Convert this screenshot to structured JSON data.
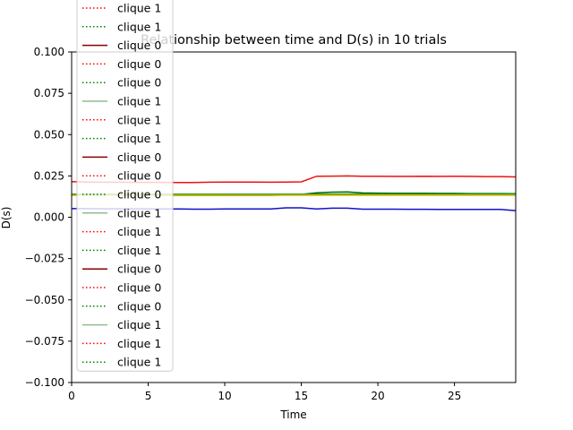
{
  "chart_data": {
    "type": "line",
    "title": "Relationship between time and D(s) in 10 trials",
    "xlabel": "Time",
    "ylabel": "D(s)",
    "xlim": [
      0,
      29
    ],
    "ylim": [
      -0.1,
      0.1
    ],
    "x_ticks": [
      0,
      5,
      10,
      15,
      20,
      25
    ],
    "x_tick_labels": [
      "0",
      "5",
      "10",
      "15",
      "20",
      "25"
    ],
    "y_ticks": [
      -0.1,
      -0.075,
      -0.05,
      -0.025,
      0.0,
      0.025,
      0.05,
      0.075,
      0.1
    ],
    "y_tick_labels": [
      "−0.100",
      "−0.075",
      "−0.050",
      "−0.025",
      "0.000",
      "0.025",
      "0.050",
      "0.075",
      "0.100"
    ],
    "grid": false,
    "legend_position": "upper-left",
    "x": [
      0,
      1,
      2,
      3,
      4,
      5,
      6,
      7,
      8,
      9,
      10,
      11,
      12,
      13,
      14,
      15,
      16,
      17,
      18,
      19,
      20,
      21,
      22,
      23,
      24,
      25,
      26,
      27,
      28,
      29
    ],
    "series": [
      {
        "color": "#ee1111",
        "values": [
          0.0215,
          0.0213,
          0.0212,
          0.0212,
          0.0211,
          0.0211,
          0.0211,
          0.021,
          0.021,
          0.0212,
          0.0213,
          0.0213,
          0.0213,
          0.0212,
          0.0213,
          0.0214,
          0.0248,
          0.0249,
          0.025,
          0.0248,
          0.0248,
          0.0247,
          0.0247,
          0.0248,
          0.0247,
          0.0248,
          0.0247,
          0.0246,
          0.0246,
          0.0244
        ]
      },
      {
        "color": "#006400",
        "values": [
          0.0135,
          0.0135,
          0.0134,
          0.0134,
          0.0133,
          0.0133,
          0.0132,
          0.0132,
          0.0132,
          0.0132,
          0.0132,
          0.0132,
          0.0132,
          0.0132,
          0.0135,
          0.0138,
          0.0148,
          0.0152,
          0.0153,
          0.0147,
          0.0146,
          0.0145,
          0.0145,
          0.0145,
          0.0144,
          0.0144,
          0.0143,
          0.0143,
          0.0143,
          0.0142
        ]
      },
      {
        "color": "#2ca02c",
        "values": [
          0.014,
          0.014,
          0.014,
          0.014,
          0.014,
          0.014,
          0.014,
          0.014,
          0.014,
          0.014,
          0.014,
          0.014,
          0.014,
          0.014,
          0.014,
          0.014,
          0.014,
          0.014,
          0.014,
          0.014,
          0.014,
          0.014,
          0.014,
          0.014,
          0.014,
          0.014,
          0.014,
          0.014,
          0.014,
          0.014
        ]
      },
      {
        "color": "#e6b800",
        "values": [
          0.0132,
          0.0132,
          0.0133,
          0.0133,
          0.0133,
          0.0133,
          0.0133,
          0.0133,
          0.0133,
          0.0133,
          0.0133,
          0.0133,
          0.0133,
          0.0133,
          0.0133,
          0.0133,
          0.0133,
          0.0133,
          0.0133,
          0.0133,
          0.0133,
          0.0133,
          0.0133,
          0.0133,
          0.0133,
          0.0133,
          0.0133,
          0.0133,
          0.0133,
          0.0133
        ]
      },
      {
        "color": "#1111cc",
        "values": [
          0.0052,
          0.0052,
          0.0051,
          0.0051,
          0.0051,
          0.0051,
          0.005,
          0.005,
          0.0049,
          0.0049,
          0.005,
          0.005,
          0.005,
          0.005,
          0.0057,
          0.0057,
          0.005,
          0.0055,
          0.0055,
          0.0049,
          0.0049,
          0.0049,
          0.0048,
          0.0048,
          0.0047,
          0.0047,
          0.0047,
          0.0047,
          0.0047,
          0.004
        ]
      }
    ],
    "legend": [
      {
        "label": "clique 1",
        "color": "#ff0000",
        "style": "dotted"
      },
      {
        "label": "clique 1",
        "color": "#008000",
        "style": "dotted"
      },
      {
        "label": "clique 0",
        "color": "#8b0000",
        "style": "solid"
      },
      {
        "label": "clique 0",
        "color": "#ff0000",
        "style": "dotted"
      },
      {
        "label": "clique 0",
        "color": "#008000",
        "style": "dotted"
      },
      {
        "label": "clique 1",
        "color": "#8fbc8f",
        "style": "solid"
      },
      {
        "label": "clique 1",
        "color": "#ff0000",
        "style": "dotted"
      },
      {
        "label": "clique 1",
        "color": "#008000",
        "style": "dotted"
      },
      {
        "label": "clique 0",
        "color": "#8b0000",
        "style": "solid"
      },
      {
        "label": "clique 0",
        "color": "#ff0000",
        "style": "dotted"
      },
      {
        "label": "clique 0",
        "color": "#008000",
        "style": "dotted"
      },
      {
        "label": "clique 1",
        "color": "#8fbc8f",
        "style": "solid"
      },
      {
        "label": "clique 1",
        "color": "#ff0000",
        "style": "dotted"
      },
      {
        "label": "clique 1",
        "color": "#008000",
        "style": "dotted"
      },
      {
        "label": "clique 0",
        "color": "#8b0000",
        "style": "solid"
      },
      {
        "label": "clique 0",
        "color": "#ff0000",
        "style": "dotted"
      },
      {
        "label": "clique 0",
        "color": "#008000",
        "style": "dotted"
      },
      {
        "label": "clique 1",
        "color": "#8fbc8f",
        "style": "solid"
      },
      {
        "label": "clique 1",
        "color": "#ff0000",
        "style": "dotted"
      },
      {
        "label": "clique 1",
        "color": "#008000",
        "style": "dotted"
      }
    ]
  }
}
